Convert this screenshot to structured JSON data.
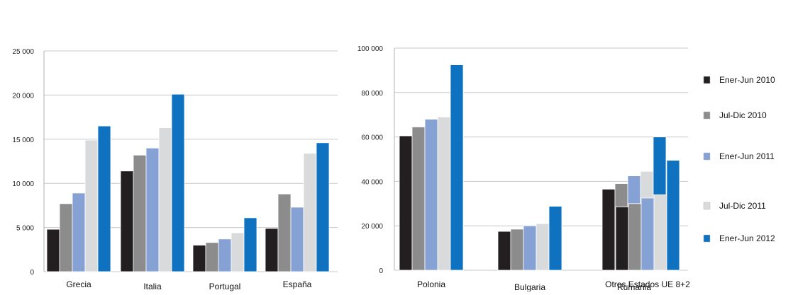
{
  "chart_data": [
    {
      "type": "bar",
      "categories": [
        "Grecia",
        "Italia",
        "Portugal",
        "España"
      ],
      "ylim": [
        0,
        25000
      ],
      "yticks": [
        0,
        5000,
        10000,
        15000,
        20000,
        25000
      ],
      "ytick_labels": [
        "0",
        "5 000",
        "10 000",
        "15 000",
        "20 000",
        "25 000"
      ],
      "series": [
        {
          "name": "Ener-Jun 2010",
          "color": "#231f20",
          "values": [
            4800,
            11400,
            3000,
            4900
          ]
        },
        {
          "name": "Jul-Dic 2010",
          "color": "#8c8c8c",
          "values": [
            7700,
            13200,
            3300,
            8800
          ]
        },
        {
          "name": "Ener-Jun 2011",
          "color": "#86a2d4",
          "values": [
            8900,
            14000,
            3700,
            7300
          ]
        },
        {
          "name": "Jul-Dic 2011",
          "color": "#d9dadb",
          "values": [
            14900,
            16300,
            4400,
            13400
          ]
        },
        {
          "name": "Ener-Jun 2012",
          "color": "#0e72c0",
          "values": [
            16500,
            20100,
            6100,
            14600
          ]
        }
      ]
    },
    {
      "type": "bar",
      "categories": [
        "Polonia",
        "Bulgaria",
        "Rumania",
        "Otros Estados UE 8+2"
      ],
      "ylim": [
        0,
        100000
      ],
      "yticks": [
        0,
        20000,
        40000,
        60000,
        80000,
        100000
      ],
      "ytick_labels": [
        "0",
        "20 000",
        "40 000",
        "60 000",
        "80 000",
        "100 000"
      ],
      "series": [
        {
          "name": "Ener-Jun 2010",
          "color": "#231f20",
          "values": [
            60500,
            17500,
            36500,
            28500
          ]
        },
        {
          "name": "Jul-Dic 2010",
          "color": "#8c8c8c",
          "values": [
            64500,
            18500,
            39000,
            30000
          ]
        },
        {
          "name": "Ener-Jun 2011",
          "color": "#86a2d4",
          "values": [
            68000,
            20000,
            42500,
            32500
          ]
        },
        {
          "name": "Jul-Dic 2011",
          "color": "#d9dadb",
          "values": [
            69000,
            21000,
            44500,
            34000
          ]
        },
        {
          "name": "Ener-Jun 2012",
          "color": "#0e72c0",
          "values": [
            92500,
            28800,
            60000,
            49500
          ]
        }
      ]
    }
  ],
  "legend": {
    "placement": "right",
    "items": [
      "Ener-Jun 2010",
      "Jul-Dic 2010",
      "Ener-Jun 2011",
      "Jul-Dic 2011",
      "Ener-Jun 2012"
    ],
    "colors": [
      "#231f20",
      "#8c8c8c",
      "#86a2d4",
      "#d9dadb",
      "#0e72c0"
    ]
  }
}
